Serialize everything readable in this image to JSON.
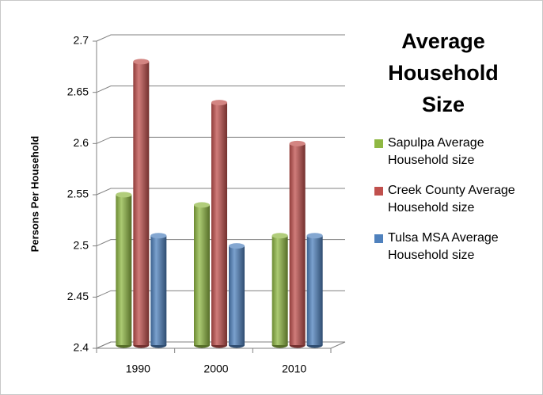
{
  "chart_data": {
    "type": "bar3d",
    "title": "Average Household Size",
    "y_label": "Persons Per Household",
    "categories": [
      "1990",
      "2000",
      "2010"
    ],
    "series": [
      {
        "name": "Sapulpa Average Household size",
        "color": "#8fb843",
        "values": [
          2.55,
          2.54,
          2.51
        ]
      },
      {
        "name": "Creek County Average Household size",
        "color": "#c0504d",
        "values": [
          2.68,
          2.64,
          2.6
        ]
      },
      {
        "name": "Tulsa MSA Average Household size",
        "color": "#4f81bd",
        "values": [
          2.51,
          2.5,
          2.51
        ]
      }
    ],
    "ylim": [
      2.4,
      2.7
    ],
    "yticks": [
      2.4,
      2.45,
      2.5,
      2.55,
      2.6,
      2.65,
      2.7
    ],
    "grid": true
  }
}
